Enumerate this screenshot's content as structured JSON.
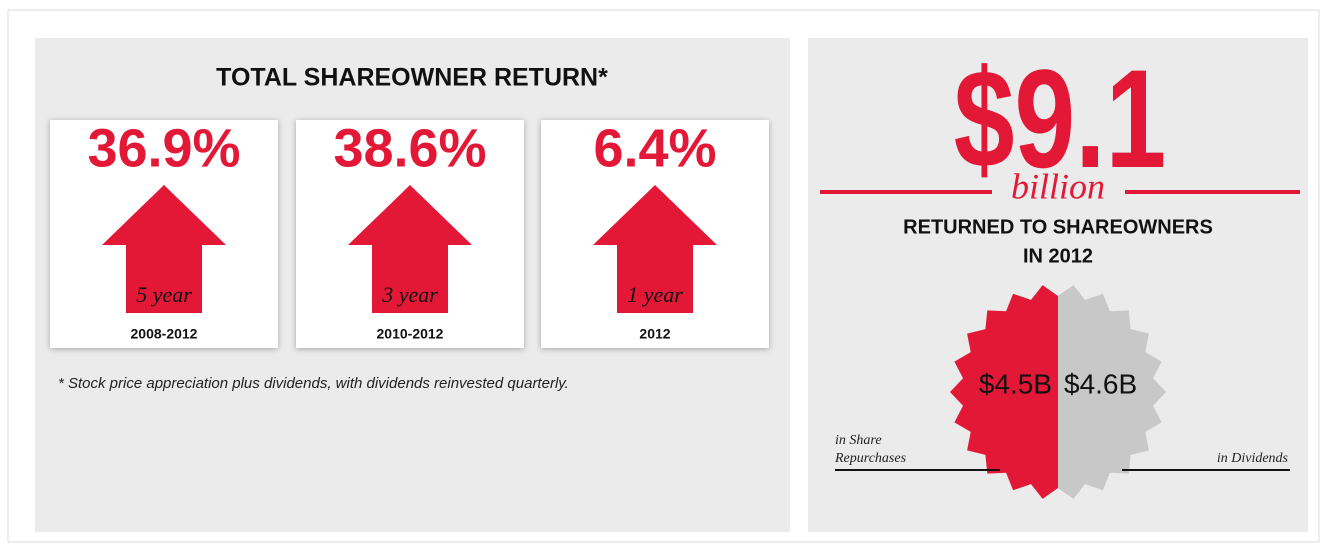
{
  "left": {
    "title": "TOTAL SHAREOWNER RETURN*",
    "cards": [
      {
        "value": "36.9%",
        "period": "5 year",
        "years": "2008-2012"
      },
      {
        "value": "38.6%",
        "period": "3 year",
        "years": "2010-2012"
      },
      {
        "value": "6.4%",
        "period": "1 year",
        "years": "2012"
      }
    ],
    "footnote": "* Stock price appreciation plus dividends, with dividends reinvested quarterly."
  },
  "right": {
    "amount": "$9.1",
    "unit": "billion",
    "caption_line1": "RETURNED TO SHAREOWNERS",
    "caption_line2": "IN 2012",
    "repurchases": {
      "amount": "$4.5B",
      "label_line1": "in Share",
      "label_line2": "Repurchases"
    },
    "dividends": {
      "amount": "$4.6B",
      "label": "in Dividends"
    }
  }
}
